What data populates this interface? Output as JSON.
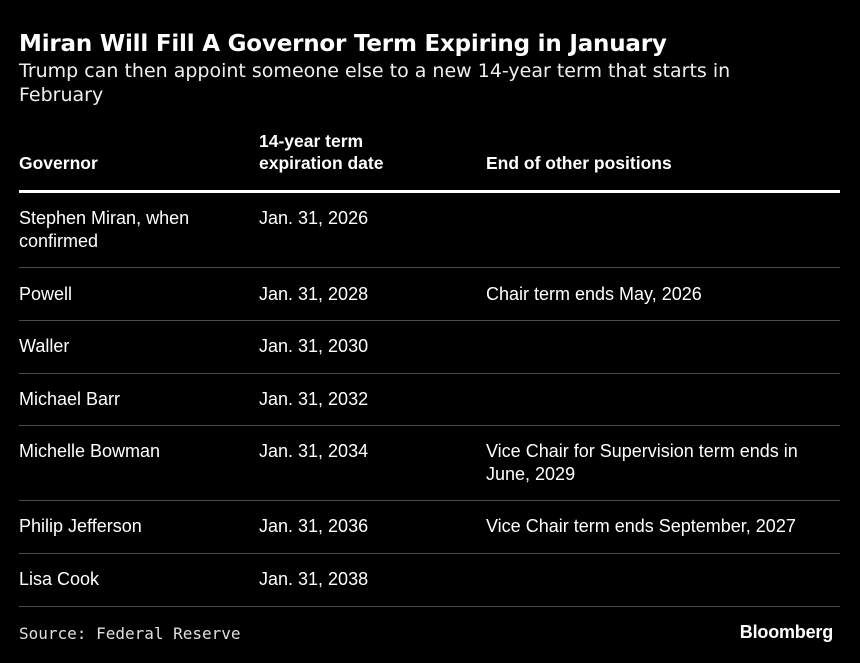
{
  "chart_data": {
    "type": "table",
    "title": "Miran Will Fill A Governor Term Expiring in January",
    "subtitle": "Trump can then appoint someone else to a new 14-year term that starts in February",
    "columns": [
      "Governor",
      "14-year term expiration date",
      "End of other positions"
    ],
    "rows": [
      {
        "governor": "Stephen Miran, when confirmed",
        "expiration": "Jan. 31, 2026",
        "other": ""
      },
      {
        "governor": "Powell",
        "expiration": "Jan. 31, 2028",
        "other": "Chair term ends May, 2026"
      },
      {
        "governor": "Waller",
        "expiration": "Jan. 31, 2030",
        "other": ""
      },
      {
        "governor": "Michael Barr",
        "expiration": "Jan. 31, 2032",
        "other": ""
      },
      {
        "governor": "Michelle Bowman",
        "expiration": "Jan. 31, 2034",
        "other": "Vice Chair for Supervision term ends in June, 2029"
      },
      {
        "governor": "Philip Jefferson",
        "expiration": "Jan. 31, 2036",
        "other": "Vice Chair term ends September, 2027"
      },
      {
        "governor": "Lisa Cook",
        "expiration": "Jan. 31, 2038",
        "other": ""
      }
    ],
    "source": "Source: Federal Reserve",
    "brand": "Bloomberg"
  },
  "colors": {
    "background": "#000000",
    "text": "#ffffff",
    "rule": "#4a4a4a"
  }
}
